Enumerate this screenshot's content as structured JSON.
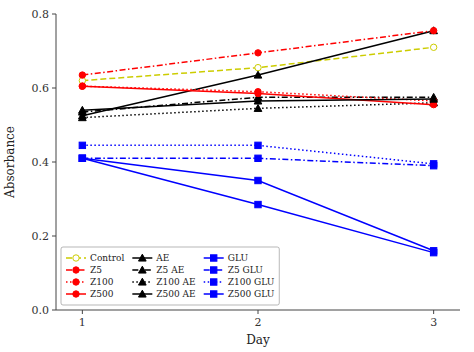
{
  "chart_data": {
    "type": "line",
    "x": [
      1,
      2,
      3
    ],
    "xlabel": "Day",
    "ylabel": "Absorbance",
    "xlim": [
      0.85,
      3.15
    ],
    "ylim": [
      0.0,
      0.8
    ],
    "xticks": [
      1,
      2,
      3
    ],
    "yticks": [
      {
        "value": 0.0,
        "label": "0.0"
      },
      0.2,
      0.4,
      0.6,
      0.8
    ],
    "grid": false,
    "legend": "lower left",
    "series": [
      {
        "name": "Control",
        "color": "#cccc00",
        "line_style": "dashed",
        "marker": "open-circle",
        "values": [
          0.62,
          0.655,
          0.71
        ]
      },
      {
        "name": "AE",
        "color": "black",
        "line_style": "solid",
        "marker": "triangle",
        "values": [
          0.525,
          0.635,
          0.755
        ]
      },
      {
        "name": "GLU",
        "color": "blue",
        "line_style": "solid",
        "marker": "square",
        "values": [
          0.41,
          0.285,
          0.155
        ]
      },
      {
        "name": "Z5",
        "color": "red",
        "line_style": "dashdot",
        "marker": "circle",
        "values": [
          0.635,
          0.695,
          0.755
        ]
      },
      {
        "name": "Z5 AE",
        "color": "black",
        "line_style": "dashdot",
        "marker": "triangle",
        "values": [
          0.535,
          0.575,
          0.575
        ]
      },
      {
        "name": "Z5 GLU",
        "color": "blue",
        "line_style": "dashdot",
        "marker": "square",
        "values": [
          0.41,
          0.41,
          0.39
        ]
      },
      {
        "name": "Z100",
        "color": "red",
        "line_style": "dotted",
        "marker": "circle",
        "values": [
          0.605,
          0.59,
          0.565
        ]
      },
      {
        "name": "Z100 AE",
        "color": "black",
        "line_style": "dotted",
        "marker": "triangle",
        "values": [
          0.52,
          0.545,
          0.56
        ]
      },
      {
        "name": "Z100 GLU",
        "color": "blue",
        "line_style": "dotted",
        "marker": "square",
        "values": [
          0.445,
          0.445,
          0.395
        ]
      },
      {
        "name": "Z500",
        "color": "red",
        "line_style": "solid",
        "marker": "circle",
        "values": [
          0.605,
          0.585,
          0.555
        ]
      },
      {
        "name": "Z500 AE",
        "color": "black",
        "line_style": "solid",
        "marker": "triangle",
        "values": [
          0.54,
          0.565,
          0.57
        ]
      },
      {
        "name": "Z500 GLU",
        "color": "blue",
        "line_style": "solid",
        "marker": "square",
        "values": [
          0.41,
          0.35,
          0.16
        ]
      }
    ]
  }
}
